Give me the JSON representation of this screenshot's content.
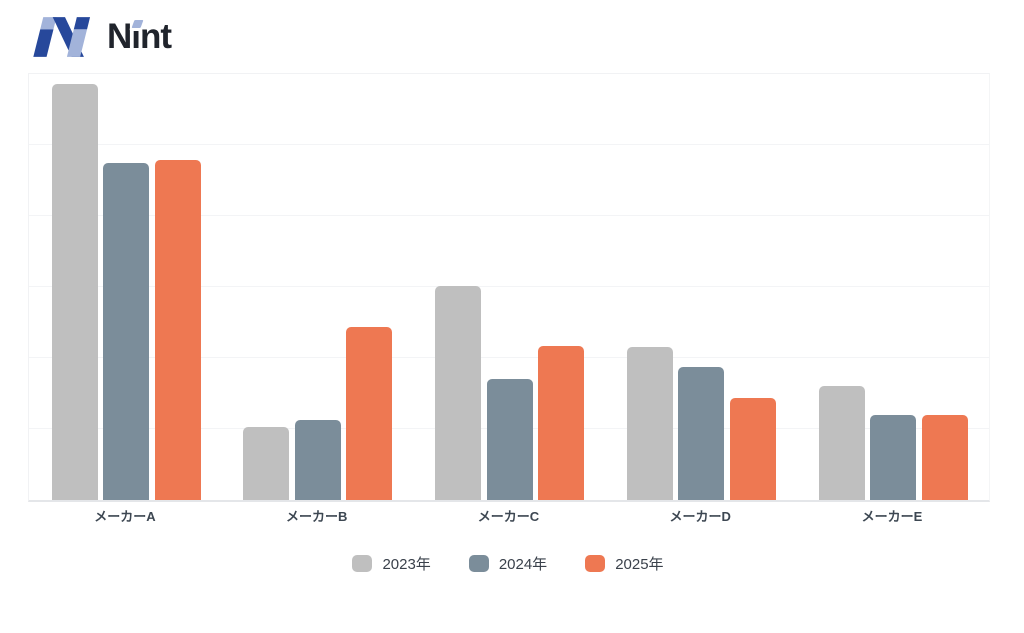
{
  "brand": {
    "name": "Nint",
    "logo_colors": {
      "dark_blue": "#27489b",
      "light_blue": "#a2b3da",
      "text": "#20242c"
    }
  },
  "chart_data": {
    "type": "bar",
    "title": "",
    "xlabel": "",
    "ylabel": "",
    "categories": [
      "メーカーA",
      "メーカーB",
      "メーカーC",
      "メーカーD",
      "メーカーE"
    ],
    "series": [
      {
        "name": "2023年",
        "color": "#bfbfbf",
        "values": [
          58.6,
          10.3,
          30.1,
          21.6,
          16.0
        ]
      },
      {
        "name": "2024年",
        "color": "#7b8d9a",
        "values": [
          47.4,
          11.3,
          17.1,
          18.7,
          12.0
        ]
      },
      {
        "name": "2025年",
        "color": "#ee7852",
        "values": [
          47.9,
          24.3,
          21.7,
          14.4,
          12.0
        ]
      }
    ],
    "ylim": [
      0,
      60
    ],
    "gridline_interval": 10,
    "grid": "horizontal-only",
    "y_tick_labels_visible": false,
    "legend_position": "bottom"
  }
}
